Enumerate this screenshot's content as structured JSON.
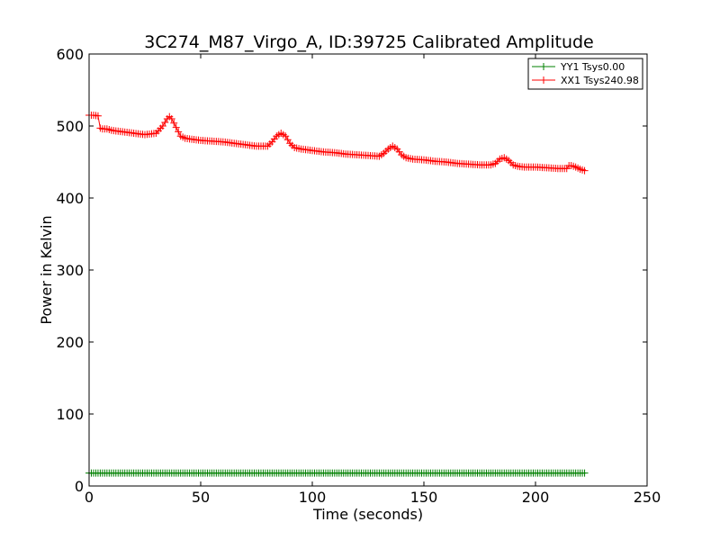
{
  "chart_data": {
    "type": "line",
    "title": "3C274_M87_Virgo_A, ID:39725 Calibrated Amplitude",
    "xlabel": "Time (seconds)",
    "ylabel": "Power in Kelvin",
    "xlim": [
      0,
      250
    ],
    "ylim": [
      0,
      600
    ],
    "xticks": [
      0,
      50,
      100,
      150,
      200,
      250
    ],
    "yticks": [
      0,
      100,
      200,
      300,
      400,
      500,
      600
    ],
    "grid": false,
    "legend_position": "top-right",
    "marker": "+",
    "series": [
      {
        "name": "YY1 Tsys0.00",
        "color": "#008000",
        "x": [
          0,
          2,
          4,
          6,
          8,
          10,
          20,
          30,
          40,
          50,
          60,
          70,
          80,
          90,
          100,
          110,
          120,
          130,
          140,
          150,
          160,
          170,
          180,
          190,
          200,
          210,
          214,
          216,
          218,
          220,
          222
        ],
        "y": [
          18,
          18,
          18,
          18,
          18,
          18,
          18,
          18,
          18,
          18,
          18,
          18,
          18,
          18,
          18,
          18,
          18,
          18,
          18,
          18,
          18,
          18,
          18,
          18,
          18,
          18,
          18,
          18,
          18,
          18,
          18
        ]
      },
      {
        "name": "XX1 Tsys240.98",
        "color": "#ff0000",
        "x": [
          0,
          2,
          4,
          5,
          6,
          8,
          10,
          15,
          20,
          25,
          30,
          33,
          35,
          36,
          37,
          39,
          41,
          43,
          45,
          50,
          55,
          60,
          65,
          70,
          75,
          80,
          82,
          84,
          86,
          88,
          90,
          92,
          95,
          100,
          105,
          110,
          115,
          120,
          125,
          130,
          132,
          134,
          136,
          138,
          140,
          142,
          145,
          150,
          155,
          160,
          165,
          170,
          175,
          180,
          182,
          184,
          186,
          188,
          190,
          192,
          195,
          200,
          205,
          210,
          214,
          215,
          216,
          218,
          220,
          222
        ],
        "y": [
          515,
          515,
          514,
          497,
          496,
          496,
          494,
          492,
          490,
          488,
          490,
          500,
          510,
          513,
          510,
          498,
          486,
          483,
          482,
          480,
          479,
          478,
          476,
          474,
          472,
          472,
          478,
          486,
          490,
          486,
          476,
          470,
          468,
          466,
          464,
          463,
          461,
          460,
          459,
          458,
          462,
          468,
          472,
          468,
          460,
          456,
          454,
          453,
          451,
          450,
          448,
          447,
          446,
          446,
          448,
          454,
          456,
          452,
          446,
          444,
          443,
          443,
          442,
          441,
          441,
          445,
          445,
          443,
          440,
          438
        ]
      }
    ]
  }
}
